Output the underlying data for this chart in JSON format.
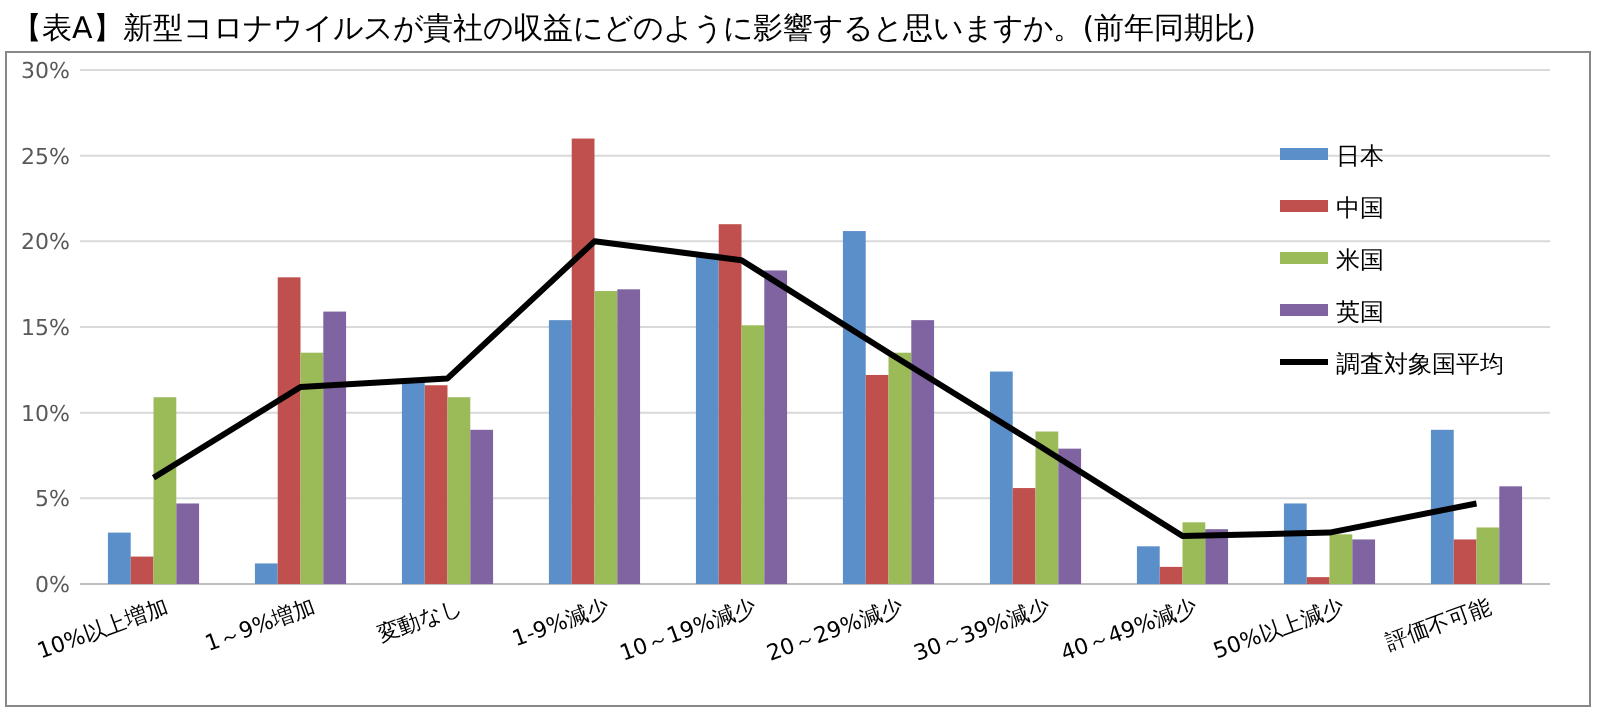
{
  "chart_data": {
    "type": "bar",
    "title": "【表A】新型コロナウイルスが貴社の収益にどのように影響すると思いますか。(前年同期比)",
    "categories": [
      "10%以上増加",
      "1～9%増加",
      "変動なし",
      "1-9%減少",
      "10～19%減少",
      "20～29%減少",
      "30～39%減少",
      "40～49%減少",
      "50%以上減少",
      "評価不可能"
    ],
    "series": [
      {
        "name": "日本",
        "color": "#5b8fc9",
        "values": [
          3.0,
          1.2,
          11.8,
          15.4,
          19.3,
          20.6,
          12.4,
          2.2,
          4.7,
          9.0
        ]
      },
      {
        "name": "中国",
        "color": "#c0504d",
        "values": [
          1.6,
          17.9,
          11.6,
          26.0,
          21.0,
          12.2,
          5.6,
          1.0,
          0.4,
          2.6
        ]
      },
      {
        "name": "米国",
        "color": "#9bbb59",
        "values": [
          10.9,
          13.5,
          10.9,
          17.1,
          15.1,
          13.5,
          8.9,
          3.6,
          2.9,
          3.3
        ]
      },
      {
        "name": "英国",
        "color": "#8064a2",
        "values": [
          4.7,
          15.9,
          9.0,
          17.2,
          18.3,
          15.4,
          7.9,
          3.2,
          2.6,
          5.7
        ]
      },
      {
        "name": "調査対象国平均",
        "color": "#000000",
        "type": "line",
        "values": [
          6.2,
          11.5,
          12.0,
          20.0,
          18.9,
          13.5,
          8.2,
          2.8,
          3.0,
          4.7
        ]
      }
    ],
    "ylim": [
      0,
      30
    ],
    "yticks": [
      {
        "value": 0,
        "label": "0%"
      },
      {
        "value": 5,
        "label": "5%"
      },
      {
        "value": 10,
        "label": "10%"
      },
      {
        "value": 15,
        "label": "15%"
      },
      {
        "value": 20,
        "label": "20%"
      },
      {
        "value": 25,
        "label": "25%"
      },
      {
        "value": 30,
        "label": "30%"
      }
    ],
    "grid": "y",
    "legend": "top right"
  }
}
